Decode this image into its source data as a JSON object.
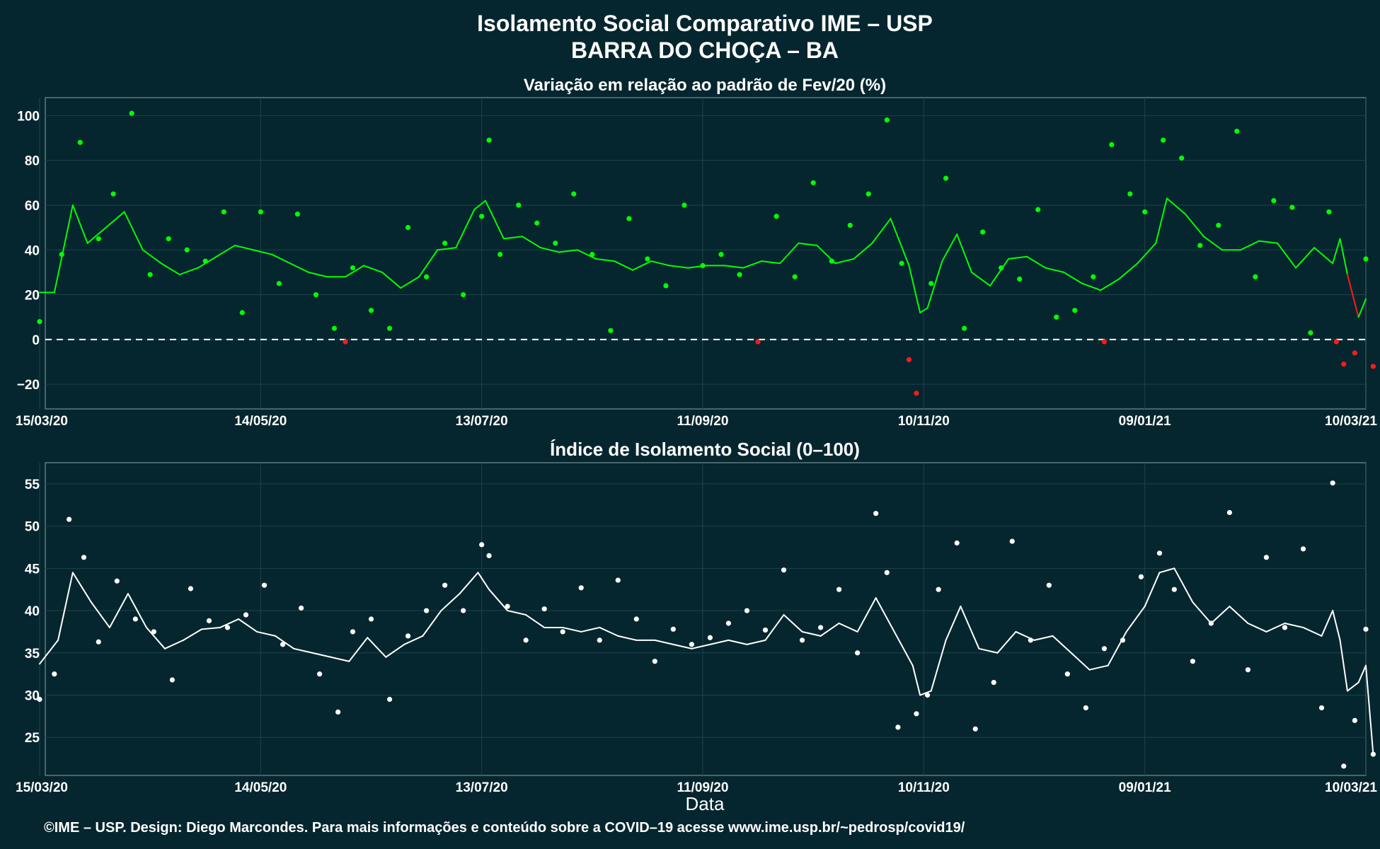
{
  "header": {
    "title_line1": "Isolamento Social Comparativo IME – USP",
    "title_line2": "BARRA DO CHOÇA – BA"
  },
  "x_axis": {
    "label": "Data",
    "start_date": "15/03/20",
    "end_date": "10/03/21"
  },
  "footer": {
    "credit": "©IME – USP. Design: Diego Marcondes. Para mais informações e conteúdo sobre a COVID–19 acesse www.ime.usp.br/~pedrosp/covid19/"
  },
  "colors": {
    "background": "#06262f",
    "panel_border": "#5f7a80",
    "grid": "#1d414a",
    "positive": "#00ff00",
    "negative": "#ff1a1a",
    "index_series": "#ffffff",
    "reference_line": "#ffffff"
  },
  "chart_data": [
    {
      "type": "scatter",
      "title": "Variação em relação ao padrão de Fev/20 (%)",
      "xlabel": "",
      "ylabel": "",
      "ylim": [
        -31,
        108
      ],
      "y_ticks": [
        -20,
        0,
        20,
        40,
        60,
        80,
        100
      ],
      "x_ticks": [
        "15/03/20",
        "14/05/20",
        "13/07/20",
        "11/09/20",
        "10/11/20",
        "09/01/21",
        "10/03/21"
      ],
      "reference_line": 0,
      "grid": true,
      "color_rule": "green when value >= 0, red when value < 0",
      "series": [
        {
          "kind": "points",
          "x": [
            "15/03/20",
            "21/03/20",
            "26/03/20",
            "31/03/20",
            "04/04/20",
            "09/04/20",
            "14/04/20",
            "19/04/20",
            "24/04/20",
            "29/04/20",
            "04/05/20",
            "09/05/20",
            "14/05/20",
            "19/05/20",
            "24/05/20",
            "29/05/20",
            "03/06/20",
            "06/06/20",
            "08/06/20",
            "13/06/20",
            "18/06/20",
            "23/06/20",
            "28/06/20",
            "03/07/20",
            "08/07/20",
            "13/07/20",
            "15/07/20",
            "18/07/20",
            "23/07/20",
            "28/07/20",
            "02/08/20",
            "07/08/20",
            "12/08/20",
            "17/08/20",
            "22/08/20",
            "27/08/20",
            "01/09/20",
            "06/09/20",
            "11/09/20",
            "16/09/20",
            "21/09/20",
            "26/09/20",
            "01/10/20",
            "06/10/20",
            "11/10/20",
            "16/10/20",
            "21/10/20",
            "26/10/20",
            "31/10/20",
            "04/11/20",
            "06/11/20",
            "08/11/20",
            "12/11/20",
            "16/11/20",
            "21/11/20",
            "26/11/20",
            "01/12/20",
            "06/12/20",
            "11/12/20",
            "16/12/20",
            "21/12/20",
            "26/12/20",
            "29/12/20",
            "31/12/20",
            "05/01/21",
            "09/01/21",
            "14/01/21",
            "19/01/21",
            "24/01/21",
            "29/01/21",
            "03/02/21",
            "08/02/21",
            "13/02/21",
            "18/02/21",
            "23/02/21",
            "28/02/21",
            "02/03/21",
            "04/03/21",
            "07/03/21",
            "10/03/21",
            "12/03/21"
          ],
          "values": [
            8,
            38,
            88,
            45,
            65,
            101,
            29,
            45,
            40,
            35,
            57,
            12,
            57,
            25,
            56,
            20,
            5,
            -1,
            32,
            13,
            5,
            50,
            28,
            43,
            20,
            55,
            89,
            38,
            60,
            52,
            43,
            65,
            38,
            4,
            54,
            36,
            24,
            60,
            33,
            38,
            29,
            -1,
            55,
            28,
            70,
            35,
            51,
            65,
            98,
            34,
            -9,
            -24,
            25,
            72,
            5,
            48,
            32,
            27,
            58,
            10,
            13,
            28,
            -1,
            87,
            65,
            57,
            89,
            81,
            42,
            51,
            93,
            28,
            62,
            59,
            3,
            57,
            -1,
            -11,
            -6,
            36,
            -12
          ]
        },
        {
          "kind": "moving_average",
          "x": [
            "15/03/20",
            "19/03/20",
            "24/03/20",
            "28/03/20",
            "02/04/20",
            "07/04/20",
            "12/04/20",
            "17/04/20",
            "22/04/20",
            "27/04/20",
            "02/05/20",
            "07/05/20",
            "12/05/20",
            "17/05/20",
            "22/05/20",
            "27/05/20",
            "01/06/20",
            "06/06/20",
            "11/06/20",
            "16/06/20",
            "21/06/20",
            "26/06/20",
            "01/07/20",
            "06/07/20",
            "11/07/20",
            "14/07/20",
            "19/07/20",
            "24/07/20",
            "29/07/20",
            "03/08/20",
            "08/08/20",
            "13/08/20",
            "18/08/20",
            "23/08/20",
            "28/08/20",
            "02/09/20",
            "07/09/20",
            "12/09/20",
            "17/09/20",
            "22/09/20",
            "27/09/20",
            "02/10/20",
            "07/10/20",
            "12/10/20",
            "17/10/20",
            "22/10/20",
            "27/10/20",
            "01/11/20",
            "06/11/20",
            "09/11/20",
            "11/11/20",
            "15/11/20",
            "19/11/20",
            "23/11/20",
            "28/11/20",
            "03/12/20",
            "08/12/20",
            "13/12/20",
            "18/12/20",
            "23/12/20",
            "28/12/20",
            "02/01/21",
            "07/01/21",
            "12/01/21",
            "15/01/21",
            "20/01/21",
            "25/01/21",
            "30/01/21",
            "04/02/21",
            "09/02/21",
            "14/02/21",
            "19/02/21",
            "24/02/21",
            "01/03/21",
            "03/03/21",
            "05/03/21",
            "08/03/21",
            "10/03/21"
          ],
          "values": [
            21,
            21,
            60,
            43,
            50,
            57,
            40,
            34,
            29,
            32,
            37,
            42,
            40,
            38,
            34,
            30,
            28,
            28,
            33,
            30,
            23,
            28,
            40,
            41,
            58,
            62,
            45,
            46,
            41,
            39,
            40,
            36,
            35,
            31,
            35,
            33,
            32,
            33,
            33,
            32,
            35,
            34,
            43,
            42,
            34,
            36,
            43,
            54,
            33,
            12,
            14,
            35,
            47,
            30,
            24,
            36,
            37,
            32,
            30,
            25,
            22,
            27,
            34,
            43,
            63,
            56,
            46,
            40,
            40,
            44,
            43,
            32,
            41,
            34,
            45,
            29,
            10,
            18
          ]
        }
      ]
    },
    {
      "type": "scatter",
      "title": "Índice de Isolamento Social (0–100)",
      "xlabel": "Data",
      "ylabel": "",
      "ylim": [
        20.5,
        57.5
      ],
      "y_ticks": [
        25,
        30,
        35,
        40,
        45,
        50,
        55
      ],
      "x_ticks": [
        "15/03/20",
        "14/05/20",
        "13/07/20",
        "11/09/20",
        "10/11/20",
        "09/01/21",
        "10/03/21"
      ],
      "grid": true,
      "series": [
        {
          "kind": "points",
          "x": [
            "15/03/20",
            "19/03/20",
            "23/03/20",
            "27/03/20",
            "31/03/20",
            "05/04/20",
            "10/04/20",
            "15/04/20",
            "20/04/20",
            "25/04/20",
            "30/04/20",
            "05/05/20",
            "10/05/20",
            "15/05/20",
            "20/05/20",
            "25/05/20",
            "30/05/20",
            "04/06/20",
            "08/06/20",
            "13/06/20",
            "18/06/20",
            "23/06/20",
            "28/06/20",
            "03/07/20",
            "08/07/20",
            "13/07/20",
            "15/07/20",
            "20/07/20",
            "25/07/20",
            "30/07/20",
            "04/08/20",
            "09/08/20",
            "14/08/20",
            "19/08/20",
            "24/08/20",
            "29/08/20",
            "03/09/20",
            "08/09/20",
            "13/09/20",
            "18/09/20",
            "23/09/20",
            "28/09/20",
            "03/10/20",
            "08/10/20",
            "13/10/20",
            "18/10/20",
            "23/10/20",
            "28/10/20",
            "31/10/20",
            "03/11/20",
            "08/11/20",
            "11/11/20",
            "14/11/20",
            "19/11/20",
            "24/11/20",
            "29/11/20",
            "04/12/20",
            "09/12/20",
            "14/12/20",
            "19/12/20",
            "24/12/20",
            "29/12/20",
            "03/01/21",
            "08/01/21",
            "13/01/21",
            "17/01/21",
            "22/01/21",
            "27/01/21",
            "01/02/21",
            "06/02/21",
            "11/02/21",
            "16/02/21",
            "21/02/21",
            "26/02/21",
            "01/03/21",
            "04/03/21",
            "07/03/21",
            "10/03/21",
            "12/03/21"
          ],
          "values": [
            29.5,
            32.5,
            50.8,
            46.3,
            36.3,
            43.5,
            39.0,
            37.5,
            31.8,
            42.6,
            38.8,
            38.0,
            39.5,
            43.0,
            36.0,
            40.3,
            32.5,
            28.0,
            37.5,
            39.0,
            29.5,
            37.0,
            40.0,
            43.0,
            40.0,
            47.8,
            46.5,
            40.5,
            36.5,
            40.2,
            37.5,
            42.7,
            36.5,
            43.6,
            39.0,
            34.0,
            37.8,
            36.0,
            36.8,
            38.5,
            40.0,
            37.7,
            44.8,
            36.5,
            38.0,
            42.5,
            35.0,
            51.5,
            44.5,
            26.2,
            27.8,
            30.0,
            42.5,
            48.0,
            26.0,
            31.5,
            48.2,
            36.5,
            43.0,
            32.5,
            28.5,
            35.5,
            36.5,
            44.0,
            46.8,
            42.5,
            34.0,
            38.5,
            51.6,
            33.0,
            46.3,
            38.0,
            47.3,
            28.5,
            55.1,
            21.6,
            27.0,
            37.8,
            23.0
          ]
        },
        {
          "kind": "moving_average",
          "x": [
            "15/03/20",
            "20/03/20",
            "24/03/20",
            "29/03/20",
            "03/04/20",
            "08/04/20",
            "13/04/20",
            "18/04/20",
            "23/04/20",
            "28/04/20",
            "03/05/20",
            "08/05/20",
            "13/05/20",
            "18/05/20",
            "23/05/20",
            "28/05/20",
            "02/06/20",
            "07/06/20",
            "12/06/20",
            "17/06/20",
            "22/06/20",
            "27/06/20",
            "02/07/20",
            "07/07/20",
            "12/07/20",
            "15/07/20",
            "20/07/20",
            "25/07/20",
            "30/07/20",
            "04/08/20",
            "09/08/20",
            "14/08/20",
            "19/08/20",
            "24/08/20",
            "29/08/20",
            "03/09/20",
            "08/09/20",
            "13/09/20",
            "18/09/20",
            "23/09/20",
            "28/09/20",
            "03/10/20",
            "08/10/20",
            "13/10/20",
            "18/10/20",
            "23/10/20",
            "28/10/20",
            "02/11/20",
            "07/11/20",
            "09/11/20",
            "12/11/20",
            "16/11/20",
            "20/11/20",
            "25/11/20",
            "30/11/20",
            "05/12/20",
            "10/12/20",
            "15/12/20",
            "20/12/20",
            "25/12/20",
            "30/12/20",
            "04/01/21",
            "09/01/21",
            "13/01/21",
            "17/01/21",
            "22/01/21",
            "27/01/21",
            "01/02/21",
            "06/02/21",
            "11/02/21",
            "16/02/21",
            "21/02/21",
            "26/02/21",
            "01/03/21",
            "03/03/21",
            "05/03/21",
            "08/03/21",
            "10/03/21",
            "12/03/21"
          ],
          "values": [
            33.7,
            36.5,
            44.5,
            41.0,
            38.0,
            42.0,
            38.0,
            35.5,
            36.5,
            37.8,
            38.0,
            39.0,
            37.5,
            37.0,
            35.5,
            35.0,
            34.5,
            34.0,
            36.8,
            34.5,
            36.0,
            37.0,
            40.0,
            42.0,
            44.5,
            42.5,
            40.0,
            39.5,
            38.0,
            38.0,
            37.5,
            38.0,
            37.0,
            36.5,
            36.5,
            36.0,
            35.5,
            36.0,
            36.5,
            36.0,
            36.5,
            39.5,
            37.5,
            37.0,
            38.5,
            37.5,
            41.5,
            37.5,
            33.5,
            30.0,
            30.5,
            36.5,
            40.5,
            35.5,
            35.0,
            37.5,
            36.5,
            37.0,
            35.0,
            33.0,
            33.5,
            37.5,
            40.5,
            44.5,
            45.0,
            41.0,
            38.5,
            40.5,
            38.5,
            37.5,
            38.5,
            38.0,
            37.0,
            40.0,
            36.5,
            30.5,
            31.5,
            33.5,
            23.0
          ]
        }
      ]
    }
  ]
}
